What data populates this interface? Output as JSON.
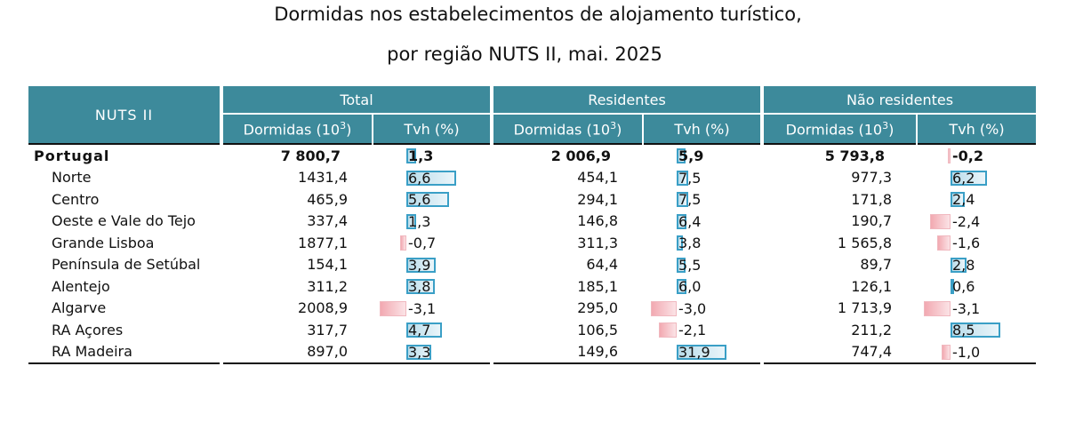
{
  "title_line1": "Dormidas nos estabelecimentos de alojamento turístico,",
  "title_line2": "por região NUTS II, mai. 2025",
  "headers": {
    "nuts": "NUTS II",
    "groups": [
      "Total",
      "Residentes",
      "Não residentes"
    ],
    "dormidas": "Dormidas (10",
    "dormidas_sup": "3",
    "dormidas_close": ")",
    "tvh": "Tvh (%)"
  },
  "chart_data": {
    "type": "table",
    "title": "Dormidas nos estabelecimentos de alojamento turístico, por região NUTS II, mai. 2025",
    "columns": [
      "NUTS II",
      "Total Dormidas (10^3)",
      "Total Tvh (%)",
      "Residentes Dormidas (10^3)",
      "Residentes Tvh (%)",
      "Não residentes Dormidas (10^3)",
      "Não residentes Tvh (%)"
    ],
    "rows": [
      {
        "name": "Portugal",
        "total": "7 800,7",
        "total_tvh": "1,3",
        "res": "2 006,9",
        "res_tvh": "5,9",
        "nres": "5 793,8",
        "nres_tvh": "-0,2",
        "bar_total": 1.3,
        "bar_res": 5.9,
        "bar_nres": -0.2
      },
      {
        "name": "Norte",
        "total": "1431,4",
        "total_tvh": "6,6",
        "res": "454,1",
        "res_tvh": "7,5",
        "nres": "977,3",
        "nres_tvh": "6,2",
        "bar_total": 6.6,
        "bar_res": 7.5,
        "bar_nres": 6.2
      },
      {
        "name": "Centro",
        "total": "465,9",
        "total_tvh": "5,6",
        "res": "294,1",
        "res_tvh": "7,5",
        "nres": "171,8",
        "nres_tvh": "2,4",
        "bar_total": 5.6,
        "bar_res": 7.5,
        "bar_nres": 2.4
      },
      {
        "name": "Oeste e Vale do  Tejo",
        "total": "337,4",
        "total_tvh": "1,3",
        "res": "146,8",
        "res_tvh": "6,4",
        "nres": "190,7",
        "nres_tvh": "-2,4",
        "bar_total": 1.3,
        "bar_res": 6.4,
        "bar_nres": -2.4
      },
      {
        "name": "Grande Lisboa",
        "total": "1877,1",
        "total_tvh": "-0,7",
        "res": "311,3",
        "res_tvh": "3,8",
        "nres": "1 565,8",
        "nres_tvh": "-1,6",
        "bar_total": -0.7,
        "bar_res": 3.8,
        "bar_nres": -1.6
      },
      {
        "name": "Península de Setúbal",
        "total": "154,1",
        "total_tvh": "3,9",
        "res": "64,4",
        "res_tvh": "5,5",
        "nres": "89,7",
        "nres_tvh": "2,8",
        "bar_total": 3.9,
        "bar_res": 5.5,
        "bar_nres": 2.8
      },
      {
        "name": "Alentejo",
        "total": "311,2",
        "total_tvh": "3,8",
        "res": "185,1",
        "res_tvh": "6,0",
        "nres": "126,1",
        "nres_tvh": "0,6",
        "bar_total": 3.8,
        "bar_res": 6.0,
        "bar_nres": 0.6
      },
      {
        "name": "Algarve",
        "total": "2008,9",
        "total_tvh": "-3,1",
        "res": "295,0",
        "res_tvh": "-3,0",
        "nres": "1 713,9",
        "nres_tvh": "-3,1",
        "bar_total": -3.1,
        "bar_res": -3.0,
        "bar_nres": -3.1
      },
      {
        "name": "RA Açores",
        "total": "317,7",
        "total_tvh": "4,7",
        "res": "106,5",
        "res_tvh": "-2,1",
        "nres": "211,2",
        "nres_tvh": "8,5",
        "bar_total": 4.7,
        "bar_res": -2.1,
        "bar_nres": 8.5
      },
      {
        "name": "RA Madeira",
        "total": "897,0",
        "total_tvh": "3,3",
        "res": "149,6",
        "res_tvh": "31,9",
        "nres": "747,4",
        "nres_tvh": "-1,0",
        "bar_total": 3.3,
        "bar_res": 31.9,
        "bar_nres": -1.0
      }
    ],
    "bar_scale_max": {
      "total": 6.6,
      "res": 31.9,
      "nres": 8.5
    },
    "colors": {
      "header": "#3d8a9b",
      "positive_bar": "#3a9fc6",
      "negative_bar": "#f2a9b1"
    }
  }
}
